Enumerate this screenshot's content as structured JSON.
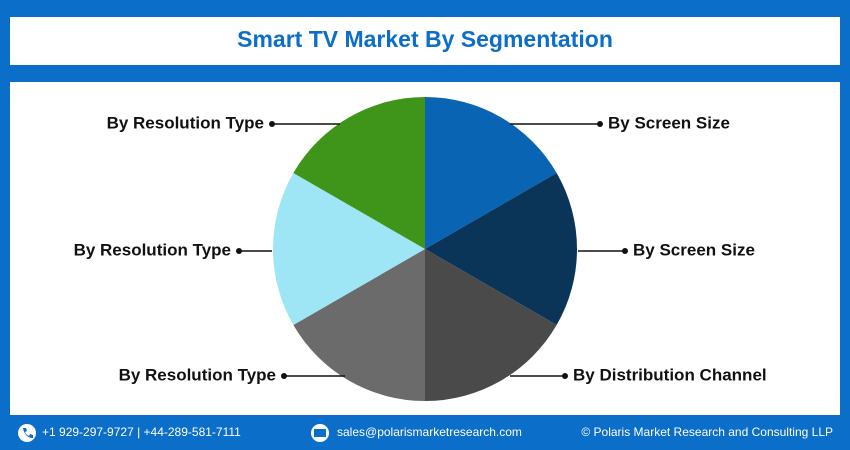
{
  "chart_data": {
    "type": "pie",
    "title": "Smart TV Market By Segmentation",
    "categories": [
      "By Screen Size",
      "By Screen Size",
      "By Distribution Channel",
      "By Resolution Type",
      "By Resolution Type",
      "By Resolution Type"
    ],
    "values": [
      16.67,
      16.67,
      16.67,
      16.67,
      16.67,
      16.67
    ],
    "colors": [
      "#0a64b4",
      "#0a3558",
      "#4a4a4a",
      "#6b6b6b",
      "#9ee6f5",
      "#3f941a"
    ]
  },
  "footer": {
    "phone": "+1 929-297-9727 | +44-289-581-7111",
    "email": "sales@polarismarketresearch.com",
    "copyright": "© Polaris Market Research and Consulting LLP"
  }
}
